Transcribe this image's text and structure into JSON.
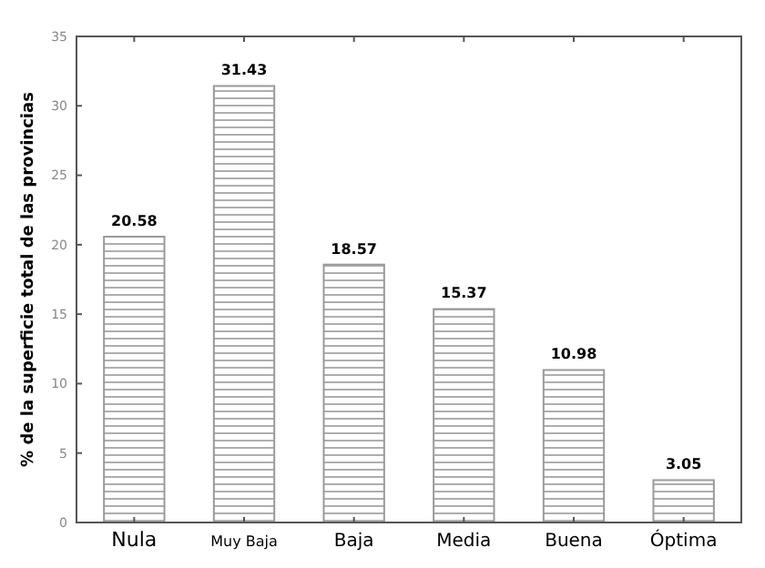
{
  "chart_data": {
    "type": "bar",
    "ylabel": "% de la superficie total de las provincias",
    "categories": [
      "Nula",
      "Muy Baja",
      "Baja",
      "Media",
      "Buena",
      "Óptima"
    ],
    "values": [
      20.58,
      31.43,
      18.57,
      15.37,
      10.98,
      3.05
    ],
    "color": "#9a9a9a",
    "data_labels": true,
    "ylim": [
      0,
      35
    ],
    "yticks": [
      0,
      5,
      10,
      15,
      20,
      25,
      30,
      35
    ],
    "grid": false
  }
}
